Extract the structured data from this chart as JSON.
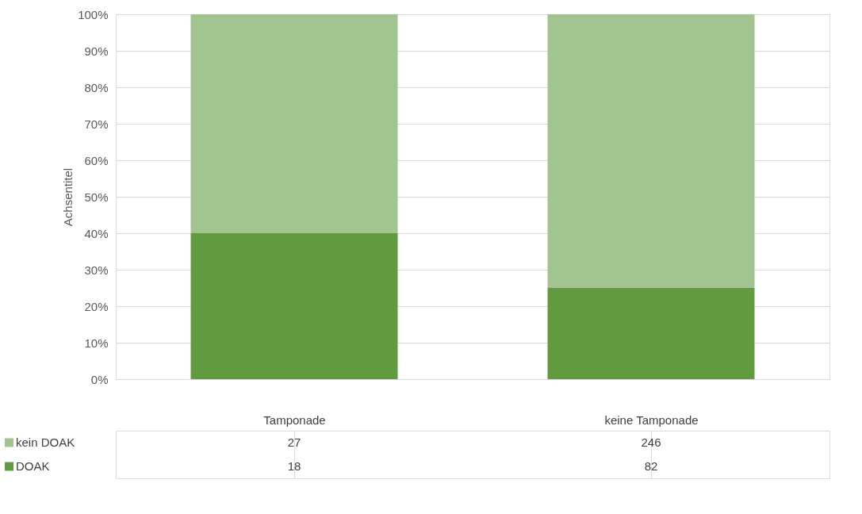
{
  "chart_data": {
    "type": "bar",
    "stacked": true,
    "ylabel": "Achsentitel",
    "categories": [
      "Tamponade",
      "keine Tamponade"
    ],
    "series": [
      {
        "name": "DOAK",
        "color": "#629a3f",
        "values": [
          40,
          25
        ]
      },
      {
        "name": "kein DOAK",
        "color": "#a2c490",
        "values": [
          60,
          75
        ]
      }
    ],
    "annotations": [
      "18",
      "82",
      "27",
      "246"
    ],
    "ylim": [
      0,
      100
    ],
    "yticks": [
      {
        "value": 0,
        "label": "0%"
      },
      {
        "value": 10,
        "label": "10%"
      },
      {
        "value": 20,
        "label": "20%"
      },
      {
        "value": 30,
        "label": "30%"
      },
      {
        "value": 40,
        "label": "40%"
      },
      {
        "value": 50,
        "label": "50%"
      },
      {
        "value": 60,
        "label": "60%"
      },
      {
        "value": 70,
        "label": "70%"
      },
      {
        "value": 80,
        "label": "80%"
      },
      {
        "value": 90,
        "label": "90%"
      },
      {
        "value": 100,
        "label": "100%"
      }
    ],
    "grid": "y",
    "legend": "bottom"
  }
}
